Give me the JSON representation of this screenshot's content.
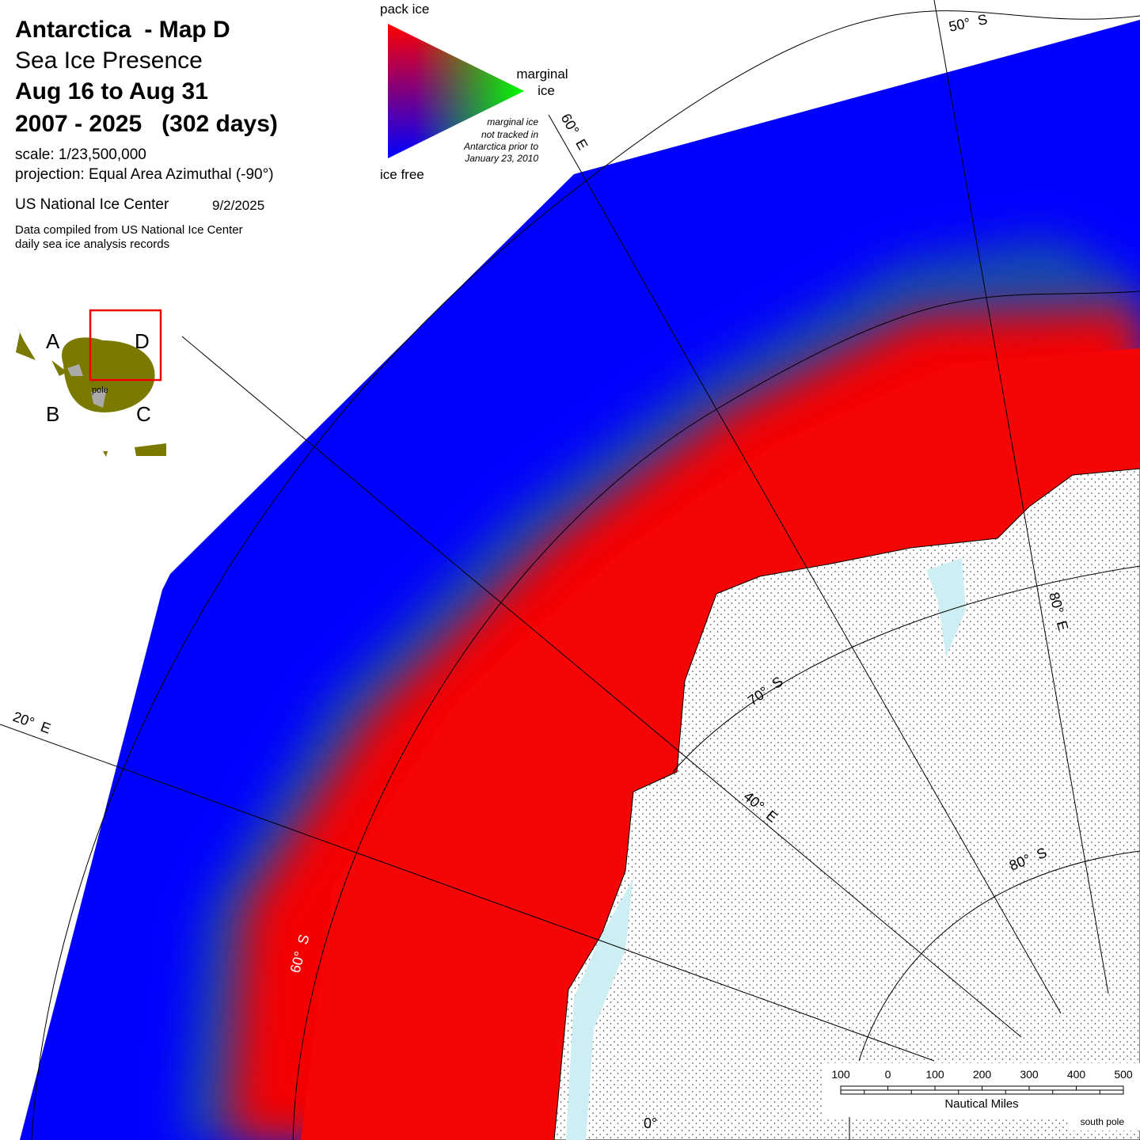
{
  "header": {
    "title": "Antarctica  - Map D",
    "subtitle": "Sea Ice Presence",
    "dates": "Aug 16 to Aug 31",
    "years": "2007 - 2025   (302 days)",
    "scale": "scale: 1/23,500,000",
    "projection": "projection: Equal Area Azimuthal (-90°)",
    "agency": "US National Ice Center",
    "date": "9/2/2025",
    "note": [
      "Data compiled from US National Ice Center",
      "daily sea ice analysis records"
    ]
  },
  "legend": {
    "pack_ice": "pack ice",
    "marginal_ice": [
      "marginal",
      "ice"
    ],
    "ice_free": "ice free",
    "note": [
      "marginal ice",
      "not tracked in",
      "Antarctica prior to",
      "January 23, 2010"
    ]
  },
  "inset": {
    "labels": [
      "A",
      "D",
      "B",
      "C"
    ],
    "pole": "pole"
  },
  "grid_labels": {
    "lat_50": "50°  S",
    "lat_60": "60°  S",
    "lat_70": "70°  S",
    "lat_80": "80°  S",
    "lon_60": "60°  E",
    "lon_20": "20°  E",
    "lon_40": "40°  E",
    "lon_80": "80°  E",
    "lon_0": "0°"
  },
  "scale_bar": {
    "labels": [
      "100",
      "0",
      "100",
      "200",
      "300",
      "400",
      "500"
    ],
    "unit": "Nautical Miles"
  },
  "south_pole": "south pole"
}
